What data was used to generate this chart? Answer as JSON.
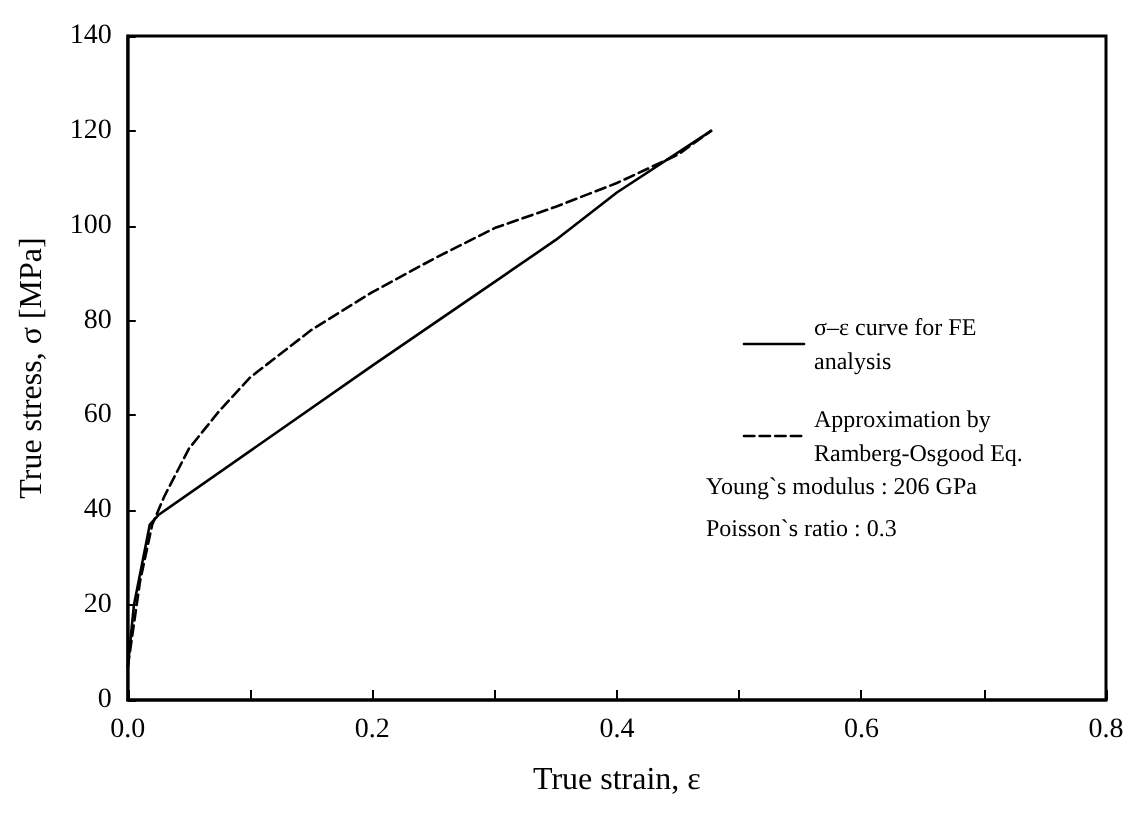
{
  "chart_data": {
    "type": "line",
    "xlabel": "True strain, ε",
    "ylabel": "True stress, σ [MPa]",
    "xlim": [
      0,
      0.8
    ],
    "xticks": [
      {
        "value": 0,
        "label": "0.0"
      },
      {
        "value": 0.1,
        "label": null
      },
      0.2,
      {
        "value": 0.3,
        "label": null
      },
      0.4,
      {
        "value": 0.5,
        "label": null
      },
      0.6,
      {
        "value": 0.7,
        "label": null
      },
      0.8
    ],
    "ylim": [
      0,
      140
    ],
    "yticks": [
      0,
      20,
      40,
      60,
      80,
      100,
      120,
      140
    ],
    "grid": false,
    "legend": "right",
    "marker": "none",
    "series": [
      {
        "name": "σ–ε curve for FE analysis",
        "color": "#000000",
        "line_style": "solid",
        "x": [
          0,
          0.005,
          0.018,
          0.025,
          0.2,
          0.35,
          0.4,
          0.477
        ],
        "values": [
          7,
          20,
          37,
          39,
          70.5,
          97,
          107,
          120
        ]
      },
      {
        "name": "Approximation by Ramberg-Osgood Eq.",
        "color": "#000000",
        "line_style": "dashed",
        "x": [
          0,
          0.01,
          0.02,
          0.03,
          0.05,
          0.075,
          0.1,
          0.15,
          0.2,
          0.25,
          0.3,
          0.35,
          0.4,
          0.45,
          0.477
        ],
        "values": [
          7,
          25,
          37,
          43,
          53,
          61,
          68,
          78,
          86,
          93,
          99.5,
          104,
          109,
          115,
          120
        ]
      }
    ],
    "annotations": [
      "Young`s modulus : 206 GPa",
      "Poisson`s ratio : 0.3"
    ]
  }
}
